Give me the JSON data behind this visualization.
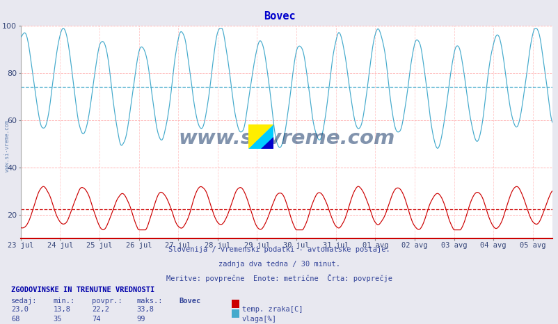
{
  "title": "Bovec",
  "title_color": "#0000cc",
  "bg_color": "#e8e8f0",
  "plot_bg_color": "#ffffff",
  "ylim": [
    10,
    100
  ],
  "yticks": [
    20,
    40,
    60,
    80,
    100
  ],
  "x_labels": [
    "23 jul",
    "24 jul",
    "25 jul",
    "26 jul",
    "27 jul",
    "28 jul",
    "29 jul",
    "30 jul",
    "31 jul",
    "01 avg",
    "02 avg",
    "03 avg",
    "04 avg",
    "05 avg"
  ],
  "temp_avg": 22.2,
  "vlaga_avg": 74,
  "temp_color": "#cc0000",
  "vlaga_color": "#44aacc",
  "grid_color_h": "#ffaaaa",
  "grid_color_v": "#ffcccc",
  "avg_line_temp_color": "#cc0000",
  "avg_line_vlaga_color": "#44aacc",
  "subtitle1": "Slovenija / vremenski podatki - avtomatske postaje.",
  "subtitle2": "zadnja dva tedna / 30 minut.",
  "subtitle3": "Meritve: povprečne  Enote: metrične  Črta: povprečje",
  "footer_title": "ZGODOVINSKE IN TRENUTNE VREDNOSTI",
  "footer_labels": [
    "sedaj:",
    "min.:",
    "povpr.:",
    "maks.:",
    "Bovec"
  ],
  "temp_stats": [
    "23,0",
    "13,8",
    "22,2",
    "33,8"
  ],
  "vlaga_stats": [
    "68",
    "35",
    "74",
    "99"
  ],
  "legend_items": [
    "temp. zraka[C]",
    "vlaga[%]"
  ],
  "legend_colors": [
    "#cc0000",
    "#44aacc"
  ],
  "watermark_text": "www.si-vreme.com",
  "watermark_color": "#1a3a6a",
  "side_watermark": "www.si-vreme.com",
  "side_watermark_color": "#5577aa",
  "n_days": 13.5,
  "logo_yellow": "#ffee00",
  "logo_cyan": "#00ccff",
  "logo_blue": "#0000cc"
}
